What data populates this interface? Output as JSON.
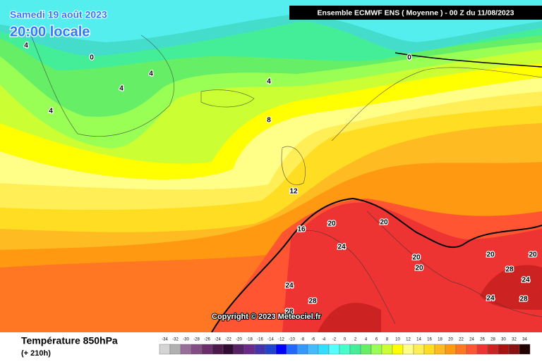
{
  "header": {
    "date": "Samedi 19 août 2023",
    "time": "20:00 locale",
    "model": "Ensemble ECMWF ENS  ( Moyenne )  -  00 Z du 11/08/2023"
  },
  "copyright": "Copyright © 2023 Meteociel.fr",
  "footer": {
    "title": "Température 850hPa",
    "lead": "(+ 210h)"
  },
  "contour_labels": [
    4,
    0,
    4,
    4,
    4,
    4,
    0,
    8,
    12,
    16,
    20,
    20,
    24,
    20,
    20,
    20,
    20,
    28,
    24,
    28,
    28,
    24,
    24,
    28
  ],
  "legend": {
    "values": [
      -34,
      -32,
      -30,
      -28,
      -26,
      -24,
      -22,
      -20,
      -18,
      -16,
      -14,
      -12,
      -10,
      -8,
      -6,
      -4,
      -2,
      0,
      2,
      4,
      6,
      8,
      10,
      12,
      14,
      16,
      18,
      20,
      22,
      24,
      26,
      28,
      30,
      32,
      34
    ],
    "colors": [
      "#d4d4d4",
      "#b0b0b0",
      "#9a6e9a",
      "#844c84",
      "#6a2f6a",
      "#4d1a4d",
      "#330a33",
      "#552266",
      "#6a2a8a",
      "#4433aa",
      "#2244cc",
      "#0000ff",
      "#2266ff",
      "#3399ff",
      "#44bbff",
      "#33ddff",
      "#55ffff",
      "#44ffcc",
      "#44ee99",
      "#66ee66",
      "#99ff55",
      "#ccff33",
      "#ffff00",
      "#ffff88",
      "#ffee55",
      "#ffdd22",
      "#ffbb22",
      "#ff9911",
      "#ff7722",
      "#ff5533",
      "#ee3333",
      "#cc2222",
      "#aa1111",
      "#881111",
      "#220000"
    ]
  }
}
